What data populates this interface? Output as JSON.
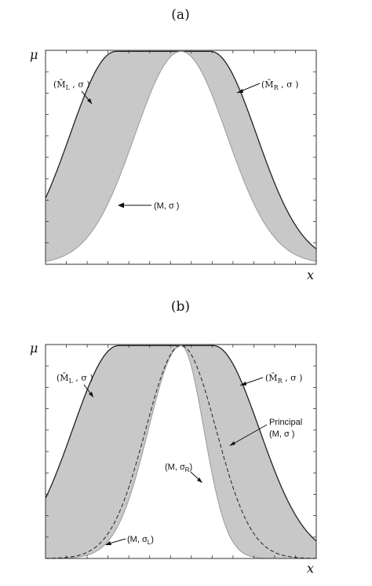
{
  "chart_data": [
    {
      "type": "area",
      "panel_label": "(a)",
      "ylabel": "μ",
      "xlabel": "x",
      "xlim": [
        0,
        100
      ],
      "ylim": [
        0,
        1
      ],
      "grid": false,
      "annotations": [
        {
          "text": "(M̄",
          "sub": "L",
          "suffix": " , σ )",
          "points_to": "left upper edge"
        },
        {
          "text": "(M̄",
          "sub": "R",
          "suffix": " , σ )",
          "points_to": "right upper edge"
        },
        {
          "text": "(M, σ )",
          "points_to": "left lower edge"
        }
      ]
    },
    {
      "type": "area",
      "panel_label": "(b)",
      "ylabel": "μ",
      "xlabel": "x",
      "xlim": [
        0,
        100
      ],
      "ylim": [
        0,
        1
      ],
      "grid": false,
      "annotations": [
        {
          "text": "(M̄",
          "sub": "L",
          "suffix": " , σ )",
          "points_to": "left upper edge"
        },
        {
          "text": "(M̄",
          "sub": "R",
          "suffix": " , σ )",
          "points_to": "right upper edge"
        },
        {
          "text": "Principal",
          "line2": "(M, σ )",
          "points_to": "dashed curve"
        },
        {
          "text": "(M, σ",
          "sub": "R",
          "suffix": ")",
          "points_to": "right lower edge"
        },
        {
          "text": "(M, σ",
          "sub": "L",
          "suffix": ")",
          "points_to": "left lower edge"
        }
      ]
    }
  ]
}
